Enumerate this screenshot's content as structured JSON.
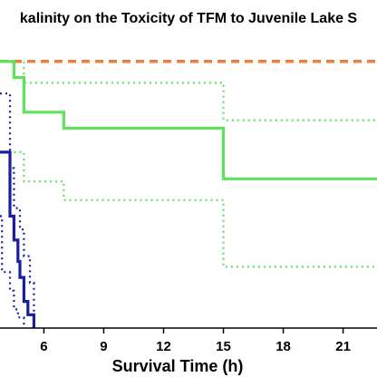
{
  "chart_data": {
    "type": "line",
    "title": "kalinity on the Toxicity of TFM to Juvenile Lake S",
    "xlabel": "Survival Time (h)",
    "ylabel": "",
    "xlim": [
      3.8,
      22.7
    ],
    "ylim": [
      0,
      1.02
    ],
    "x_ticks": [
      6,
      9,
      12,
      15,
      18,
      21
    ],
    "x_tick_labels": [
      "6",
      "9",
      "12",
      "15",
      "18",
      "21"
    ],
    "grid": false,
    "series": [
      {
        "color": "#000000",
        "style": "dashed",
        "role": "survival",
        "x": [
          3.8,
          22.7
        ],
        "y": [
          1.0,
          1.0
        ]
      },
      {
        "color": "#f07f3c",
        "style": "dashed",
        "role": "survival",
        "x": [
          3.8,
          22.7
        ],
        "y": [
          1.0,
          1.0
        ]
      },
      {
        "color": "#5fe35c",
        "style": "solid",
        "role": "survival",
        "x": [
          3.8,
          4.5,
          4.5,
          5.0,
          5.0,
          7.0,
          7.0,
          15.0,
          15.0,
          22.7
        ],
        "y": [
          1.0,
          1.0,
          0.94,
          0.94,
          0.81,
          0.81,
          0.75,
          0.75,
          0.56,
          0.56
        ]
      },
      {
        "color": "#5fe35c",
        "style": "dotted",
        "role": "upper-ci",
        "x": [
          5.0,
          5.0,
          15.0,
          15.0,
          22.7
        ],
        "y": [
          1.0,
          0.92,
          0.92,
          0.78,
          0.78
        ]
      },
      {
        "color": "#5fe35c",
        "style": "dotted",
        "role": "lower-ci",
        "x": [
          4.5,
          4.5,
          5.0,
          5.0,
          7.0,
          7.0,
          15.0,
          15.0,
          22.7
        ],
        "y": [
          0.66,
          0.66,
          0.66,
          0.55,
          0.55,
          0.48,
          0.48,
          0.23,
          0.23
        ]
      },
      {
        "color": "#1a1f9e",
        "style": "solid",
        "role": "survival",
        "x": [
          3.8,
          4.3,
          4.3,
          4.5,
          4.5,
          4.7,
          4.7,
          4.8,
          4.8,
          5.0,
          5.0,
          5.2,
          5.2,
          5.5,
          5.5
        ],
        "y": [
          0.66,
          0.66,
          0.42,
          0.42,
          0.33,
          0.33,
          0.25,
          0.25,
          0.19,
          0.19,
          0.1,
          0.1,
          0.05,
          0.05,
          0.0
        ]
      },
      {
        "color": "#1a1f9e",
        "style": "dotted",
        "role": "upper-ci",
        "x": [
          3.8,
          4.3,
          4.3,
          4.5,
          4.5,
          4.8,
          4.8,
          5.0,
          5.0,
          5.3,
          5.3,
          5.5,
          5.5
        ],
        "y": [
          0.88,
          0.88,
          0.6,
          0.6,
          0.45,
          0.45,
          0.37,
          0.37,
          0.27,
          0.27,
          0.17,
          0.17,
          0.0
        ]
      },
      {
        "color": "#1a1f9e",
        "style": "dotted",
        "role": "lower-ci",
        "x": [
          3.8,
          3.9,
          3.9,
          4.3,
          4.3,
          4.5,
          4.5,
          4.7,
          4.7,
          5.0,
          5.0
        ],
        "y": [
          0.42,
          0.42,
          0.21,
          0.21,
          0.14,
          0.14,
          0.07,
          0.07,
          0.04,
          0.04,
          0.0
        ]
      }
    ]
  }
}
